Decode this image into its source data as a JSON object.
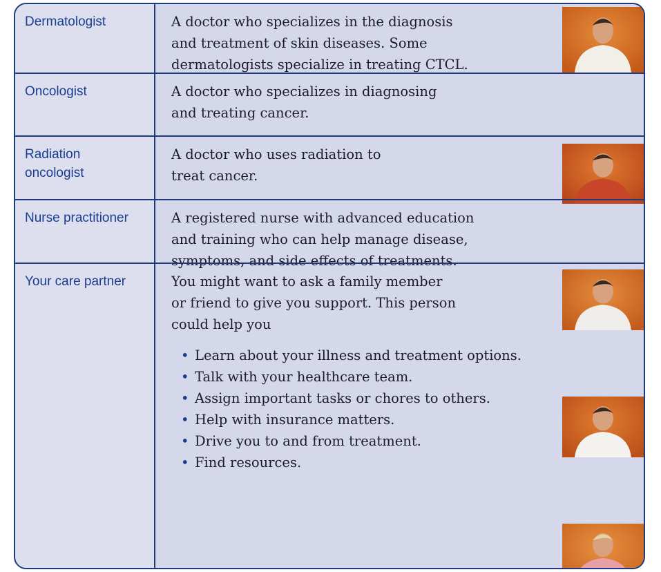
{
  "rows": [
    {
      "role": "Dermatologist",
      "description": [
        "A doctor who specializes in the diagnosis",
        "and treatment of skin diseases. Some",
        "dermatologists specialize in treating CTCL."
      ]
    },
    {
      "role": "Oncologist",
      "description": [
        "A doctor who specializes in diagnosing",
        "and treating cancer."
      ]
    },
    {
      "role": "Radiation oncologist",
      "description": [
        "A doctor who uses radiation to",
        "treat cancer."
      ]
    },
    {
      "role": "Nurse practitioner",
      "description": [
        "A registered nurse with advanced education",
        "and training who can help manage disease,",
        "symptoms, and side effects of treatments."
      ]
    },
    {
      "role": "Your care partner",
      "description": [
        "You might want to ask a family member",
        "or friend to give you support. This person",
        "could help you"
      ],
      "bullets": [
        "Learn about your illness and treatment options.",
        "Talk with your healthcare team.",
        "Assign important tasks or chores to others.",
        "Help with insurance matters.",
        "Drive you to and from treatment.",
        "Find resources."
      ]
    }
  ]
}
